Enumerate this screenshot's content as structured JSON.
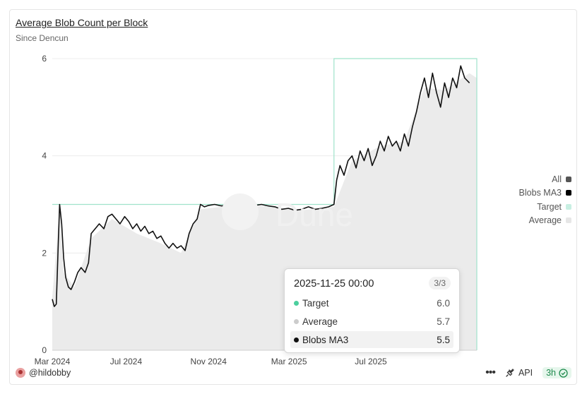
{
  "title": "Average Blob Count per Block",
  "subtitle": "Since Dencun",
  "legend": [
    {
      "label": "All",
      "color": "#555555"
    },
    {
      "label": "Blobs MA3",
      "color": "#000000"
    },
    {
      "label": "Target",
      "color": "#c8efe2"
    },
    {
      "label": "Average",
      "color": "#e6e6e6"
    }
  ],
  "tooltip": {
    "date": "2025-11-25 00:00",
    "count": "3/3",
    "rows": [
      {
        "name": "Target",
        "value": "6.0",
        "color": "#4ccf9e"
      },
      {
        "name": "Average",
        "value": "5.7",
        "color": "#cccccc"
      },
      {
        "name": "Blobs MA3",
        "value": "5.5",
        "color": "#111111"
      }
    ]
  },
  "footer": {
    "author": "@hildobby",
    "api": "API",
    "age": "3h"
  },
  "chart_data": {
    "type": "line",
    "title": "Average Blob Count per Block",
    "subtitle": "Since Dencun",
    "x_ticks": [
      "Mar 2024",
      "Jul 2024",
      "Nov 2024",
      "Mar 2025",
      "Jul 2025"
    ],
    "ylim": [
      0,
      6
    ],
    "y_ticks": [
      "0",
      "2",
      "4",
      "6"
    ],
    "grid": true,
    "legend_position": "right",
    "series": [
      {
        "name": "Target",
        "color": "#9fe3cb",
        "points": [
          [
            "2024-03-13",
            3
          ],
          [
            "2025-05-07",
            3
          ],
          [
            "2025-05-07",
            6
          ],
          [
            "2025-12-06",
            6
          ]
        ]
      },
      {
        "name": "Blobs MA3",
        "color": "#111111",
        "points": [
          [
            "2024-03-13",
            1.05
          ],
          [
            "2024-03-16",
            0.9
          ],
          [
            "2024-03-19",
            0.95
          ],
          [
            "2024-03-22",
            2.2
          ],
          [
            "2024-03-24",
            3.0
          ],
          [
            "2024-03-27",
            2.6
          ],
          [
            "2024-03-30",
            1.9
          ],
          [
            "2024-04-02",
            1.5
          ],
          [
            "2024-04-06",
            1.3
          ],
          [
            "2024-04-10",
            1.25
          ],
          [
            "2024-04-15",
            1.4
          ],
          [
            "2024-04-20",
            1.6
          ],
          [
            "2024-04-25",
            1.7
          ],
          [
            "2024-05-01",
            1.6
          ],
          [
            "2024-05-06",
            1.8
          ],
          [
            "2024-05-10",
            2.4
          ],
          [
            "2024-05-16",
            2.5
          ],
          [
            "2024-05-22",
            2.6
          ],
          [
            "2024-05-29",
            2.5
          ],
          [
            "2024-06-04",
            2.75
          ],
          [
            "2024-06-10",
            2.8
          ],
          [
            "2024-06-16",
            2.7
          ],
          [
            "2024-06-22",
            2.6
          ],
          [
            "2024-06-29",
            2.75
          ],
          [
            "2024-07-05",
            2.65
          ],
          [
            "2024-07-11",
            2.5
          ],
          [
            "2024-07-17",
            2.6
          ],
          [
            "2024-07-23",
            2.45
          ],
          [
            "2024-07-29",
            2.55
          ],
          [
            "2024-08-04",
            2.4
          ],
          [
            "2024-08-10",
            2.45
          ],
          [
            "2024-08-16",
            2.3
          ],
          [
            "2024-08-22",
            2.35
          ],
          [
            "2024-08-28",
            2.2
          ],
          [
            "2024-09-03",
            2.1
          ],
          [
            "2024-09-09",
            2.2
          ],
          [
            "2024-09-15",
            2.1
          ],
          [
            "2024-09-21",
            2.15
          ],
          [
            "2024-09-27",
            2.05
          ],
          [
            "2024-10-03",
            2.4
          ],
          [
            "2024-10-09",
            2.6
          ],
          [
            "2024-10-15",
            2.7
          ],
          [
            "2024-10-20",
            3.0
          ],
          [
            "2024-10-26",
            2.95
          ],
          [
            "2024-11-01",
            2.98
          ],
          [
            "2024-11-10",
            3.0
          ],
          [
            "2024-11-20",
            2.97
          ],
          [
            "2024-11-30",
            2.98
          ],
          [
            "2024-12-10",
            3.0
          ],
          [
            "2024-12-20",
            2.97
          ],
          [
            "2024-12-30",
            2.99
          ],
          [
            "2025-01-09",
            2.98
          ],
          [
            "2025-01-19",
            3.0
          ],
          [
            "2025-01-29",
            2.97
          ],
          [
            "2025-02-08",
            2.95
          ],
          [
            "2025-02-18",
            2.9
          ],
          [
            "2025-02-28",
            2.92
          ],
          [
            "2025-03-10",
            2.88
          ],
          [
            "2025-03-20",
            2.9
          ],
          [
            "2025-03-30",
            2.95
          ],
          [
            "2025-04-09",
            2.9
          ],
          [
            "2025-04-19",
            2.92
          ],
          [
            "2025-04-29",
            2.95
          ],
          [
            "2025-05-07",
            3.0
          ],
          [
            "2025-05-11",
            3.5
          ],
          [
            "2025-05-16",
            3.8
          ],
          [
            "2025-05-22",
            3.6
          ],
          [
            "2025-05-28",
            3.9
          ],
          [
            "2025-06-03",
            4.0
          ],
          [
            "2025-06-09",
            3.75
          ],
          [
            "2025-06-15",
            4.1
          ],
          [
            "2025-06-21",
            3.9
          ],
          [
            "2025-06-27",
            4.15
          ],
          [
            "2025-07-03",
            3.8
          ],
          [
            "2025-07-09",
            4.0
          ],
          [
            "2025-07-15",
            4.3
          ],
          [
            "2025-07-21",
            4.1
          ],
          [
            "2025-07-27",
            4.4
          ],
          [
            "2025-08-02",
            4.2
          ],
          [
            "2025-08-08",
            4.3
          ],
          [
            "2025-08-14",
            4.1
          ],
          [
            "2025-08-20",
            4.45
          ],
          [
            "2025-08-26",
            4.2
          ],
          [
            "2025-09-01",
            4.6
          ],
          [
            "2025-09-07",
            4.9
          ],
          [
            "2025-09-13",
            5.3
          ],
          [
            "2025-09-19",
            5.6
          ],
          [
            "2025-09-25",
            5.2
          ],
          [
            "2025-10-01",
            5.7
          ],
          [
            "2025-10-07",
            5.3
          ],
          [
            "2025-10-13",
            5.0
          ],
          [
            "2025-10-19",
            5.5
          ],
          [
            "2025-10-25",
            5.2
          ],
          [
            "2025-10-31",
            5.6
          ],
          [
            "2025-11-06",
            5.4
          ],
          [
            "2025-11-12",
            5.85
          ],
          [
            "2025-11-18",
            5.6
          ],
          [
            "2025-11-25",
            5.5
          ]
        ]
      },
      {
        "name": "Average",
        "color": "#ebebeb",
        "points": [
          [
            "2024-03-13",
            1.1
          ],
          [
            "2024-03-24",
            2.9
          ],
          [
            "2024-03-30",
            1.6
          ],
          [
            "2024-04-15",
            1.3
          ],
          [
            "2024-05-10",
            2.3
          ],
          [
            "2024-06-10",
            2.7
          ],
          [
            "2024-07-17",
            2.4
          ],
          [
            "2024-08-22",
            2.2
          ],
          [
            "2024-09-21",
            2.0
          ],
          [
            "2024-10-20",
            2.9
          ],
          [
            "2024-11-20",
            2.95
          ],
          [
            "2025-01-19",
            2.97
          ],
          [
            "2025-03-20",
            2.88
          ],
          [
            "2025-05-07",
            2.95
          ],
          [
            "2025-06-03",
            3.9
          ],
          [
            "2025-07-15",
            4.2
          ],
          [
            "2025-08-20",
            4.3
          ],
          [
            "2025-09-19",
            5.4
          ],
          [
            "2025-10-19",
            5.35
          ],
          [
            "2025-11-25",
            5.7
          ],
          [
            "2025-12-06",
            5.6
          ]
        ]
      }
    ]
  }
}
